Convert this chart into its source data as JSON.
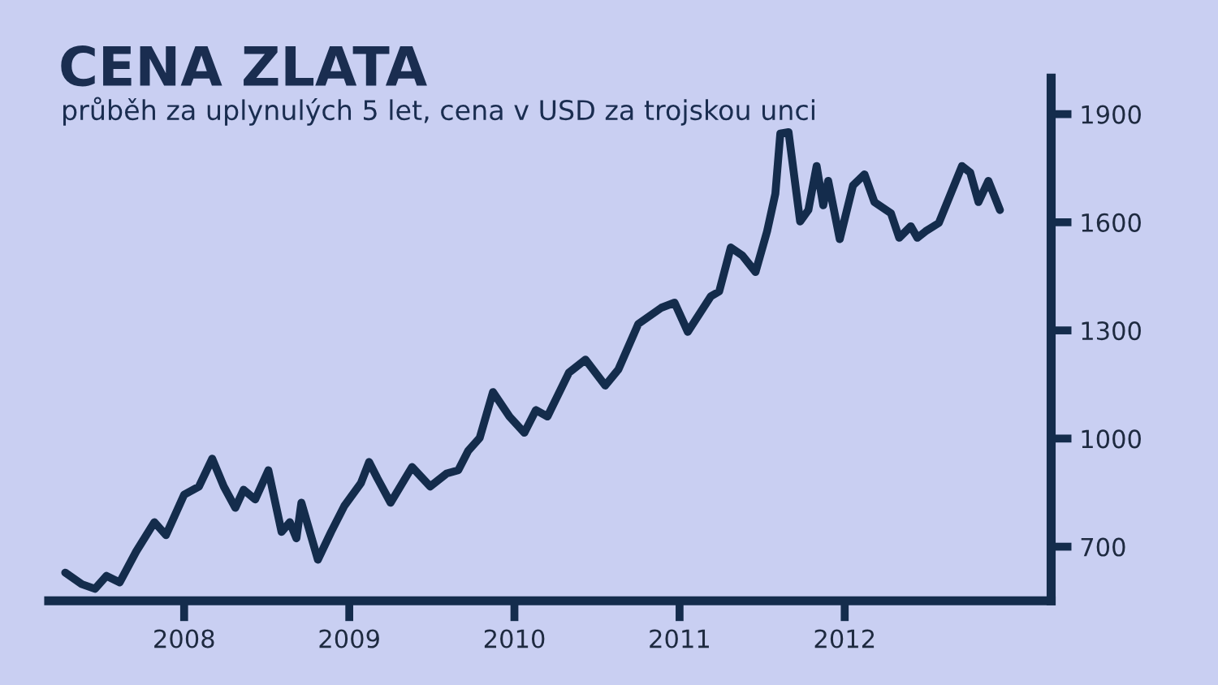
{
  "chart_data": {
    "type": "line",
    "title": "CENA ZLATA",
    "subtitle": "průběh za uplynulých 5 let, cena v USD za trojskou unci",
    "x": [
      2007.28,
      2007.38,
      2007.46,
      2007.53,
      2007.61,
      2007.71,
      2007.82,
      2007.89,
      2008.0,
      2008.09,
      2008.17,
      2008.24,
      2008.31,
      2008.36,
      2008.43,
      2008.51,
      2008.59,
      2008.64,
      2008.68,
      2008.71,
      2008.81,
      2008.89,
      2008.97,
      2009.07,
      2009.12,
      2009.17,
      2009.25,
      2009.38,
      2009.49,
      2009.59,
      2009.66,
      2009.72,
      2009.79,
      2009.87,
      2009.97,
      2010.06,
      2010.13,
      2010.2,
      2010.33,
      2010.43,
      2010.55,
      2010.63,
      2010.75,
      2010.89,
      2010.97,
      2011.05,
      2011.19,
      2011.24,
      2011.31,
      2011.38,
      2011.46,
      2011.53,
      2011.58,
      2011.61,
      2011.66,
      2011.73,
      2011.78,
      2011.83,
      2011.87,
      2011.9,
      2011.97,
      2012.05,
      2012.12,
      2012.18,
      2012.28,
      2012.33,
      2012.4,
      2012.44,
      2012.49,
      2012.57,
      2012.71,
      2012.76,
      2012.81,
      2012.87,
      2012.94
    ],
    "series": [
      {
        "color": "#142c4c",
        "values": [
          628,
          596,
          583,
          619,
          601,
          687,
          768,
          732,
          844,
          867,
          944,
          867,
          808,
          858,
          831,
          912,
          741,
          768,
          723,
          822,
          664,
          741,
          813,
          876,
          935,
          890,
          822,
          921,
          867,
          903,
          912,
          966,
          1002,
          1129,
          1061,
          1016,
          1079,
          1061,
          1183,
          1219,
          1147,
          1192,
          1318,
          1363,
          1377,
          1296,
          1395,
          1408,
          1530,
          1508,
          1462,
          1575,
          1679,
          1846,
          1850,
          1602,
          1634,
          1756,
          1647,
          1715,
          1553,
          1702,
          1733,
          1656,
          1625,
          1557,
          1589,
          1557,
          1575,
          1598,
          1756,
          1738,
          1656,
          1715,
          1634
        ]
      }
    ],
    "xlim": [
      2007.18,
      2013.25
    ],
    "xticks": [
      2008,
      2009,
      2010,
      2011,
      2012
    ],
    "ylim": [
      550,
      2000
    ],
    "yticks": [
      700,
      1000,
      1300,
      1600,
      1900
    ],
    "grid": false,
    "legend": false,
    "marker": "none",
    "line_style": "solid"
  }
}
